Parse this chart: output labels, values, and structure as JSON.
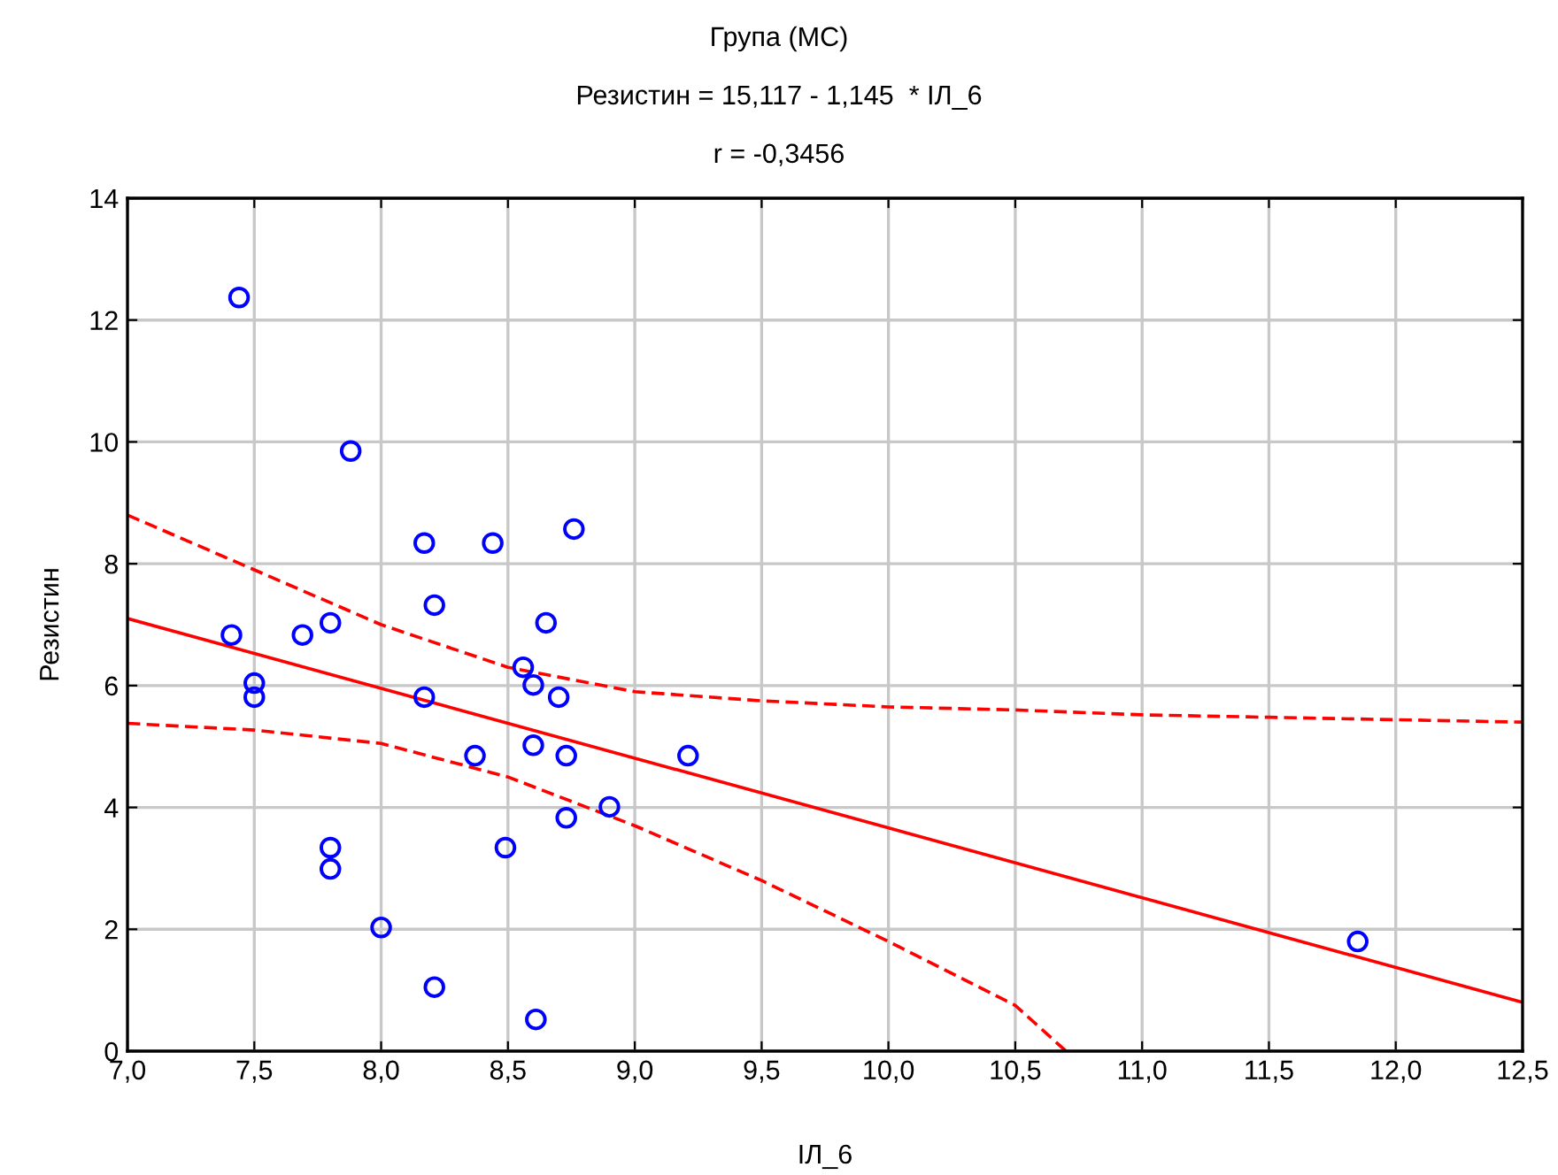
{
  "chart_data": {
    "type": "scatter",
    "title": "Група (МС)",
    "subtitle": "Резистин = 15,117 - 1,145  * ІЛ_6",
    "annotations": [
      "r = -0,3456"
    ],
    "xlabel": "ІЛ_6",
    "ylabel": "Резистин",
    "series": [
      {
        "color": "#0000ff",
        "marker": "circle",
        "x": [
          7.44,
          7.88,
          8.17,
          8.44,
          8.76,
          8.21,
          8.65,
          7.8,
          7.41,
          7.69,
          8.56,
          8.6,
          7.5,
          7.5,
          8.17,
          8.7,
          8.6,
          8.73,
          8.37,
          9.21,
          8.9,
          8.73,
          7.8,
          7.8,
          8.49,
          8.0,
          8.21,
          8.61,
          11.85
        ],
        "values": [
          12.37,
          9.85,
          8.34,
          8.34,
          8.57,
          7.32,
          7.03,
          7.03,
          6.83,
          6.83,
          6.3,
          6.01,
          6.04,
          5.81,
          5.81,
          5.81,
          5.02,
          4.85,
          4.85,
          4.85,
          4.01,
          3.83,
          3.34,
          2.99,
          3.34,
          2.03,
          1.05,
          0.52,
          1.8
        ]
      },
      {
        "type": "line",
        "color": "#ff0000",
        "line_style": "solid",
        "x": [
          7.0,
          12.5
        ],
        "values": [
          7.1,
          0.8
        ]
      },
      {
        "type": "line",
        "color": "#ff0000",
        "line_style": "dashed",
        "x": [
          7.0,
          7.5,
          8.0,
          8.5,
          9.0,
          9.5,
          10.0,
          10.5,
          11.0,
          11.5,
          12.0,
          12.5
        ],
        "values": [
          8.8,
          7.9,
          7.0,
          6.3,
          5.9,
          5.75,
          5.65,
          5.6,
          5.52,
          5.48,
          5.44,
          5.4
        ]
      },
      {
        "type": "line",
        "color": "#ff0000",
        "line_style": "dashed",
        "x": [
          7.0,
          7.5,
          8.0,
          8.5,
          9.0,
          9.5,
          10.0,
          10.5,
          10.7
        ],
        "values": [
          5.38,
          5.27,
          5.05,
          4.5,
          3.7,
          2.8,
          1.8,
          0.75,
          0.0
        ]
      }
    ],
    "xlim": [
      7.0,
      12.5
    ],
    "xticks": [
      {
        "value": 7.0,
        "label": "7,0"
      },
      {
        "value": 7.5,
        "label": "7,5"
      },
      {
        "value": 8.0,
        "label": "8,0"
      },
      {
        "value": 8.5,
        "label": "8,5"
      },
      {
        "value": 9.0,
        "label": "9,0"
      },
      {
        "value": 9.5,
        "label": "9,5"
      },
      {
        "value": 10.0,
        "label": "10,0"
      },
      {
        "value": 10.5,
        "label": "10,5"
      },
      {
        "value": 11.0,
        "label": "11,0"
      },
      {
        "value": 11.5,
        "label": "11,5"
      },
      {
        "value": 12.0,
        "label": "12,0"
      },
      {
        "value": 12.5,
        "label": "12,5"
      }
    ],
    "ylim": [
      0,
      14
    ],
    "yticks": [
      0,
      2,
      4,
      6,
      8,
      10,
      12,
      14
    ],
    "grid": true
  }
}
